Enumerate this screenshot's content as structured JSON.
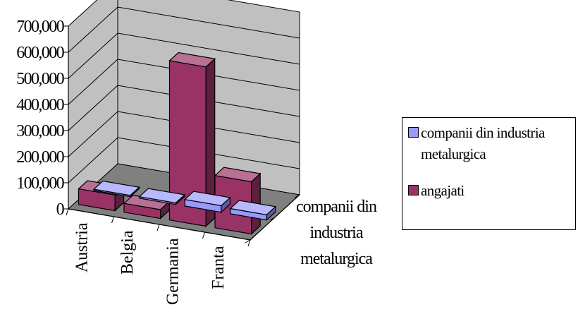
{
  "chart_data": {
    "type": "bar",
    "categories": [
      "Austria",
      "Belgia",
      "Germania",
      "Franta"
    ],
    "depth_axis_label": [
      "companii din",
      "industria",
      "metalurgica"
    ],
    "ylim": [
      0,
      700000
    ],
    "y_ticks": [
      0,
      100000,
      200000,
      300000,
      400000,
      500000,
      600000,
      700000
    ],
    "y_tick_labels": [
      "0",
      "100,000",
      "200,000",
      "300,000",
      "400,000",
      "500,000",
      "600,000",
      "700,000"
    ],
    "grid": true,
    "legend_position": "right",
    "series": [
      {
        "name": "companii din industria metalurgica",
        "values": [
          5000,
          6000,
          25000,
          20000
        ],
        "color": "#9999ff"
      },
      {
        "name": "angajati",
        "values": [
          60000,
          34000,
          610000,
          200000
        ],
        "color": "#993366"
      }
    ]
  },
  "legend": {
    "items": [
      {
        "label": "companii din industria metalurgica"
      },
      {
        "label": "angajati"
      }
    ]
  }
}
